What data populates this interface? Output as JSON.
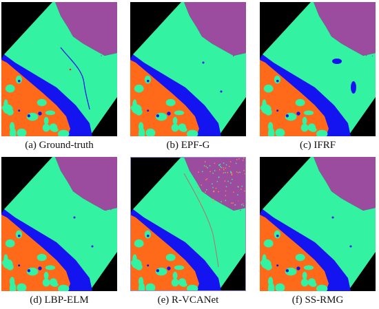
{
  "colors": {
    "background": "#000000",
    "purple_class": "#9b4c9e",
    "green_class": "#33f2a2",
    "blue_class": "#1414f0",
    "orange_class": "#ff6a1a"
  },
  "panels": [
    {
      "caption": "(a) Ground-truth"
    },
    {
      "caption": "(b) EPF-G"
    },
    {
      "caption": "(c) IFRF"
    },
    {
      "caption": "(d) LBP-ELM"
    },
    {
      "caption": "(e) R-VCANet"
    },
    {
      "caption": "(f) SS-RMG"
    }
  ]
}
